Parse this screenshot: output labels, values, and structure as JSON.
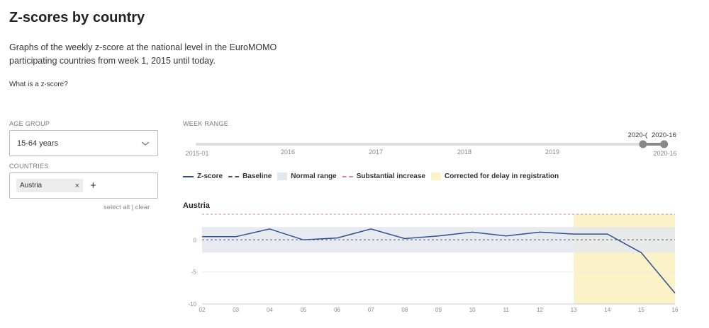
{
  "header": {
    "title": "Z-scores by country",
    "description": "Graphs of the weekly z-score at the national level in the EuroMOMO participating countries from week 1, 2015 until today.",
    "zscore_link": "What is a z-score?"
  },
  "filters": {
    "age_group_label": "AGE GROUP",
    "age_group_value": "15-64 years",
    "countries_label": "COUNTRIES",
    "selected_countries": [
      "Austria"
    ],
    "chip_remove": "×",
    "add_symbol": "+",
    "select_all": "select all",
    "separator": "|",
    "clear": "clear"
  },
  "week_range": {
    "label": "WEEK RANGE",
    "ticks": [
      "2015-01",
      "2016",
      "2017",
      "2018",
      "2019",
      "2020-16"
    ],
    "handle_start_label": "2020-(",
    "handle_end_label": "2020-16",
    "selected_fraction_start": 0.975,
    "selected_fraction_end": 1.0
  },
  "legend": [
    {
      "label": "Z-score",
      "icon": "zscore-line-swatch"
    },
    {
      "label": "Baseline",
      "icon": "baseline-dash-swatch"
    },
    {
      "label": "Normal range",
      "icon": "normal-range-swatch"
    },
    {
      "label": "Substantial increase",
      "icon": "substantial-increase-swatch"
    },
    {
      "label": "Corrected for delay in registration",
      "icon": "delay-correction-swatch"
    }
  ],
  "colors": {
    "zscore": "#2f4f8f",
    "baseline": "#555555",
    "normal_range": "#e3e8ef",
    "substantial_increase": "#e08a8a",
    "delay_correction": "#fbf3c7",
    "slider_track": "#dddddd",
    "slider_handle": "#888888"
  },
  "chart_data": {
    "type": "line",
    "title": "Austria",
    "x": [
      "02",
      "03",
      "04",
      "05",
      "06",
      "07",
      "08",
      "09",
      "10",
      "11",
      "12",
      "13",
      "14",
      "15",
      "16"
    ],
    "series": [
      {
        "name": "Z-score",
        "values": [
          0.5,
          0.5,
          1.7,
          0.0,
          0.3,
          1.7,
          0.2,
          0.6,
          1.2,
          0.6,
          1.2,
          0.9,
          0.9,
          -2.0,
          -8.3
        ]
      }
    ],
    "baseline": 0,
    "normal_range": [
      -2,
      2
    ],
    "substantial_increase": 4,
    "delay_correction_start": "13",
    "y_ticks": [
      0,
      -5,
      -10
    ],
    "ylim": [
      -10,
      4
    ]
  }
}
